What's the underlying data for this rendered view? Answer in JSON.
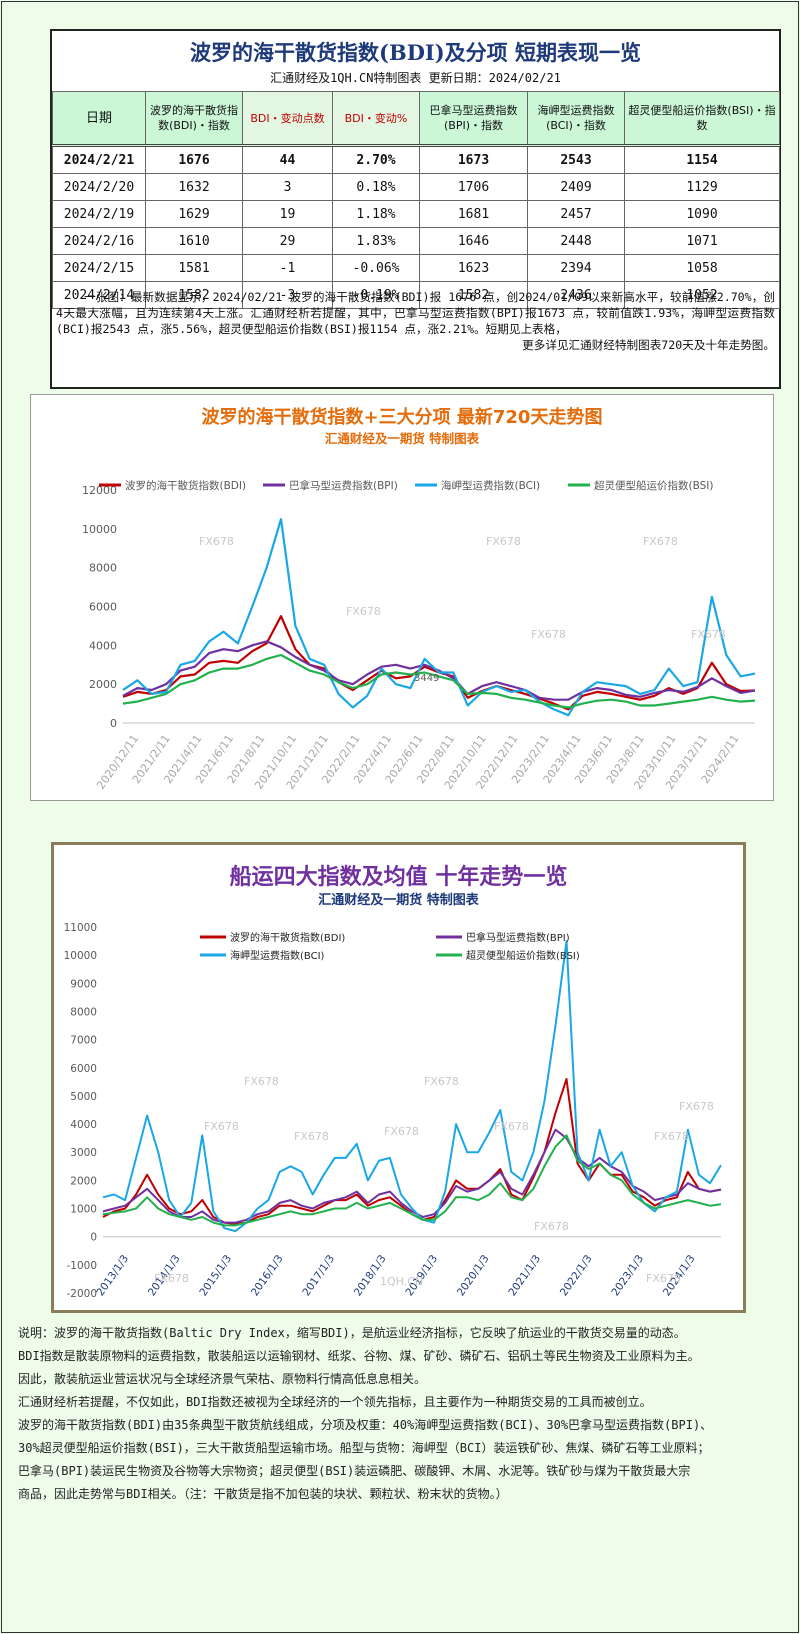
{
  "table": {
    "title": "波罗的海干散货指数(BDI)及分项 短期表现一览",
    "subtitle": "汇通财经及1QH.CN特制图表    更新日期：2024/02/21",
    "headers": [
      "日期",
      "波罗的海干散货指数(BDI)・指数",
      "BDI・变动点数",
      "BDI・变动%",
      "巴拿马型运费指数(BPI)・指数",
      "海岬型运费指数(BCI)・指数",
      "超灵便型船运价指数(BSI)・指数"
    ],
    "rows": [
      [
        "2024/2/21",
        "1676",
        "44",
        "2.70%",
        "1673",
        "2543",
        "1154"
      ],
      [
        "2024/2/20",
        "1632",
        "3",
        "0.18%",
        "1706",
        "2409",
        "1129"
      ],
      [
        "2024/2/19",
        "1629",
        "19",
        "1.18%",
        "1681",
        "2457",
        "1090"
      ],
      [
        "2024/2/16",
        "1610",
        "29",
        "1.83%",
        "1646",
        "2448",
        "1071"
      ],
      [
        "2024/2/15",
        "1581",
        "-1",
        "-0.06%",
        "1623",
        "2394",
        "1058"
      ],
      [
        "2024/2/14",
        "1582",
        "-3",
        "-0.19%",
        "1582",
        "2436",
        "1052"
      ]
    ],
    "note": "一张图：最新数据显示，2024/02/21 波罗的海干散货指数(BDI)报 1676 点，创2024/01/09以来新高水平，较前值涨2.70%，创4天最大涨幅，且为连续第4天上涨。汇通财经析若提醒，其中，巴拿马型运费指数(BPI)报1673 点，较前值跌1.93%，海岬型运费指数(BCI)报2543 点，涨5.56%，超灵便型船运价指数(BSI)报1154 点，涨2.21%。短期见上表格，",
    "note_last": "更多详见汇通财经特制图表720天及十年走势图。"
  },
  "chart1": {
    "title": "波罗的海干散货指数+三大分项  最新720天走势图",
    "subtitle": "汇通财经及一期货  特制图表",
    "watermark": "FX678",
    "annotation": "3449",
    "legend": [
      "波罗的海干散货指数(BDI)",
      "巴拿马型运费指数(BPI)",
      "海岬型运费指数(BCI)",
      "超灵便型船运价指数(BSI)"
    ]
  },
  "chart2": {
    "title": "船运四大指数及均值 十年走势一览",
    "subtitle": "汇通财经及一期货 特制图表",
    "watermark": "FX678",
    "watermark2": "1QH.CN",
    "legend": [
      "波罗的海干散货指数(BDI)",
      "巴拿马型运费指数(BPI)",
      "海岬型运费指数(BCI)",
      "超灵便型船运价指数(BSI)"
    ]
  },
  "chart_data": [
    {
      "type": "line",
      "title": "波罗的海干散货指数+三大分项  最新720天走势图",
      "ylim": [
        0,
        12000
      ],
      "yticks": [
        0,
        2000,
        4000,
        6000,
        8000,
        10000,
        12000
      ],
      "xticks": [
        "2020/12/11",
        "2021/2/11",
        "2021/4/11",
        "2021/6/11",
        "2021/8/11",
        "2021/10/11",
        "2021/12/11",
        "2022/2/11",
        "2022/4/11",
        "2022/6/11",
        "2022/8/11",
        "2022/10/11",
        "2022/12/11",
        "2023/2/11",
        "2023/4/11",
        "2023/6/11",
        "2023/8/11",
        "2023/10/11",
        "2023/12/11",
        "2024/2/11"
      ],
      "series": [
        {
          "name": "波罗的海干散货指数(BDI)",
          "color": "#c00000",
          "values": [
            1350,
            1600,
            1500,
            1700,
            2400,
            2500,
            3100,
            3200,
            3100,
            3700,
            4100,
            5500,
            3800,
            3000,
            2800,
            2100,
            1700,
            2200,
            2700,
            2300,
            2400,
            2900,
            2600,
            2400,
            1300,
            1650,
            1900,
            1700,
            1500,
            1250,
            1000,
            700,
            1400,
            1600,
            1500,
            1350,
            1200,
            1400,
            1800,
            1500,
            1800,
            3100,
            2000,
            1650,
            1676
          ]
        },
        {
          "name": "巴拿马型运费指数(BPI)",
          "color": "#7030a0",
          "values": [
            1400,
            1800,
            1700,
            2000,
            2700,
            2900,
            3600,
            3800,
            3700,
            4000,
            4200,
            3900,
            3400,
            3000,
            2700,
            2200,
            2000,
            2500,
            2900,
            3000,
            2800,
            3000,
            2700,
            2300,
            1500,
            1900,
            2100,
            1900,
            1700,
            1300,
            1200,
            1200,
            1600,
            1800,
            1700,
            1450,
            1350,
            1550,
            1700,
            1600,
            1850,
            2300,
            1900,
            1550,
            1673
          ]
        },
        {
          "name": "海岬型运费指数(BCI)",
          "color": "#1aa7e6",
          "values": [
            1700,
            2200,
            1500,
            1600,
            3000,
            3200,
            4200,
            4700,
            4100,
            6000,
            8000,
            10500,
            5000,
            3300,
            3000,
            1500,
            800,
            1400,
            2800,
            2000,
            1800,
            3300,
            2600,
            2600,
            900,
            1600,
            1900,
            1600,
            1700,
            1100,
            700,
            400,
            1600,
            2100,
            2000,
            1900,
            1500,
            1700,
            2800,
            1900,
            2100,
            6500,
            3500,
            2400,
            2543
          ]
        },
        {
          "name": "超灵便型船运价指数(BSI)",
          "color": "#22b14c",
          "values": [
            1000,
            1100,
            1300,
            1500,
            2000,
            2200,
            2600,
            2800,
            2800,
            3000,
            3300,
            3500,
            3100,
            2700,
            2500,
            2100,
            1800,
            2000,
            2500,
            2600,
            2500,
            2600,
            2400,
            2200,
            1500,
            1550,
            1500,
            1300,
            1200,
            1050,
            900,
            800,
            1000,
            1150,
            1200,
            1100,
            900,
            900,
            1000,
            1100,
            1200,
            1350,
            1200,
            1100,
            1154
          ]
        }
      ]
    },
    {
      "type": "line",
      "title": "船运四大指数及均值 十年走势一览",
      "ylim": [
        -2000,
        11000
      ],
      "yticks": [
        -2000,
        -1000,
        0,
        1000,
        2000,
        3000,
        4000,
        5000,
        6000,
        7000,
        8000,
        9000,
        10000,
        11000
      ],
      "xticks": [
        "2013/1/3",
        "2014/1/3",
        "2015/1/3",
        "2016/1/3",
        "2017/1/3",
        "2018/1/3",
        "2019/1/3",
        "2020/1/3",
        "2021/1/3",
        "2022/1/3",
        "2023/1/3",
        "2024/1/3"
      ],
      "series": [
        {
          "name": "波罗的海干散货指数(BDI)",
          "color": "#c00000",
          "values": [
            700,
            900,
            1000,
            1500,
            2200,
            1500,
            1000,
            800,
            900,
            1300,
            700,
            500,
            450,
            500,
            700,
            800,
            1100,
            1100,
            1000,
            900,
            1100,
            1300,
            1300,
            1500,
            1100,
            1300,
            1400,
            1100,
            800,
            600,
            700,
            1300,
            2000,
            1700,
            1700,
            2000,
            2400,
            1500,
            1300,
            2100,
            3000,
            4400,
            5600,
            2600,
            2000,
            2600,
            2200,
            2200,
            1600,
            1400,
            1100,
            1300,
            1400,
            2300,
            1700,
            1600,
            1676
          ]
        },
        {
          "name": "巴拿马型运费指数(BPI)",
          "color": "#7030a0",
          "values": [
            900,
            1000,
            1100,
            1400,
            1700,
            1300,
            900,
            700,
            700,
            900,
            600,
            500,
            500,
            600,
            800,
            900,
            1200,
            1300,
            1100,
            1000,
            1200,
            1300,
            1400,
            1600,
            1200,
            1500,
            1600,
            1200,
            900,
            700,
            800,
            1200,
            1800,
            1600,
            1700,
            2000,
            2300,
            1700,
            1500,
            2200,
            3000,
            3800,
            3500,
            2800,
            2500,
            2800,
            2500,
            2300,
            1800,
            1600,
            1300,
            1400,
            1500,
            1900,
            1700,
            1600,
            1673
          ]
        },
        {
          "name": "海岬型运费指数(BCI)",
          "color": "#1aa7e6",
          "values": [
            1400,
            1500,
            1300,
            2800,
            4300,
            3000,
            1300,
            700,
            1200,
            3600,
            900,
            300,
            200,
            500,
            1000,
            1300,
            2300,
            2500,
            2300,
            1500,
            2200,
            2800,
            2800,
            3300,
            2000,
            2700,
            2800,
            1500,
            1000,
            600,
            500,
            1600,
            4000,
            3000,
            3000,
            3700,
            4500,
            2300,
            2000,
            3000,
            4800,
            7500,
            10500,
            3000,
            2000,
            3800,
            2500,
            3000,
            1800,
            1200,
            900,
            1400,
            1600,
            3800,
            2200,
            1900,
            2543
          ]
        },
        {
          "name": "超灵便型船运价指数(BSI)",
          "color": "#22b14c",
          "values": [
            800,
            850,
            900,
            1000,
            1400,
            1000,
            800,
            700,
            600,
            700,
            500,
            400,
            400,
            500,
            600,
            700,
            800,
            900,
            800,
            800,
            900,
            1000,
            1000,
            1200,
            1000,
            1100,
            1200,
            1000,
            800,
            600,
            600,
            900,
            1400,
            1400,
            1300,
            1500,
            1900,
            1400,
            1300,
            1700,
            2500,
            3200,
            3600,
            2700,
            2400,
            2600,
            2200,
            2000,
            1500,
            1200,
            1000,
            1100,
            1200,
            1300,
            1200,
            1100,
            1154
          ]
        }
      ]
    }
  ]
}
